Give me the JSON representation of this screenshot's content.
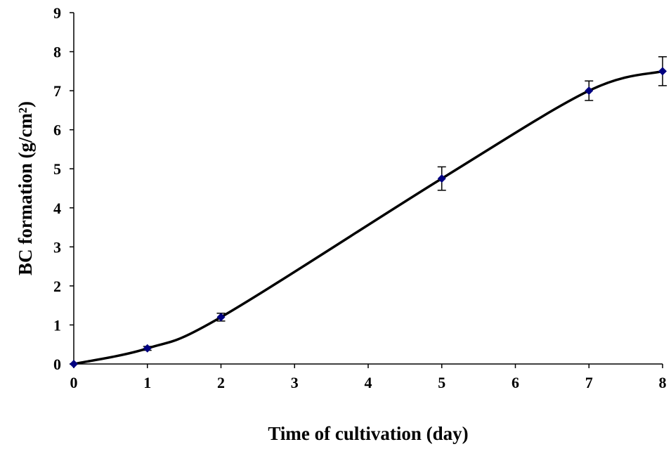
{
  "chart_data": {
    "type": "scatter",
    "x_label": "Time of cultivation (day)",
    "y_label": "BC formation (g/cm²)",
    "x": [
      0,
      1,
      2,
      5,
      7,
      8
    ],
    "series": [
      {
        "color": "#000080",
        "values": [
          0,
          0.4,
          1.2,
          4.75,
          7.0,
          7.5
        ],
        "errors": [
          0,
          0.05,
          0.1,
          0.3,
          0.25,
          0.37
        ]
      }
    ],
    "line_color": "#000000",
    "smooth": true,
    "xlim": [
      0,
      8
    ],
    "xticks": [
      0,
      1,
      2,
      3,
      4,
      5,
      6,
      7,
      8
    ],
    "ylim": [
      0,
      9
    ],
    "yticks": [
      0,
      1,
      2,
      3,
      4,
      5,
      6,
      7,
      8,
      9
    ],
    "grid": false
  }
}
